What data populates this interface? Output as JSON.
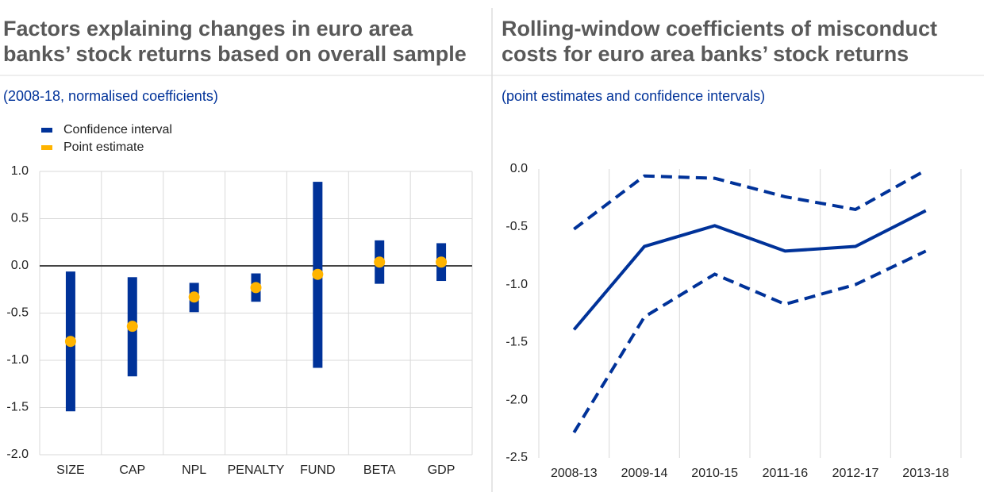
{
  "chart_data": [
    {
      "type": "interval",
      "title": "Factors explaining changes in euro area banks’ stock returns based on overall sample",
      "subtitle": "(2008-18, normalised coefficients)",
      "categories": [
        "SIZE",
        "CAP",
        "NPL",
        "PENALTY",
        "FUND",
        "BETA",
        "GDP"
      ],
      "series": [
        {
          "name": "Confidence interval",
          "color": "#003299",
          "low": [
            -1.54,
            -1.17,
            -0.49,
            -0.38,
            -1.08,
            -0.19,
            -0.16
          ],
          "high": [
            -0.06,
            -0.12,
            -0.18,
            -0.08,
            0.89,
            0.27,
            0.24
          ]
        },
        {
          "name": "Point estimate",
          "color": "#ffb400",
          "values": [
            -0.8,
            -0.64,
            -0.33,
            -0.23,
            -0.09,
            0.04,
            0.04
          ]
        }
      ],
      "ylim": [
        -2.0,
        1.0
      ],
      "yticks": [
        {
          "value": -2,
          "label": "-2.0"
        },
        {
          "value": -1.5,
          "label": "-1.5"
        },
        {
          "value": -1,
          "label": "-1.0"
        },
        {
          "value": -0.5,
          "label": "-0.5"
        },
        {
          "value": 0,
          "label": "0.0"
        },
        {
          "value": 0.5,
          "label": "0.5"
        },
        {
          "value": 1,
          "label": "1.0"
        }
      ],
      "grid": "both",
      "legend": "top-left"
    },
    {
      "type": "line",
      "title": "Rolling-window coefficients of misconduct costs for euro area banks’ stock returns",
      "subtitle": "(point estimates and confidence intervals)",
      "categories": [
        "2008-13",
        "2009-14",
        "2010-15",
        "2011-16",
        "2012-17",
        "2013-18"
      ],
      "series": [
        {
          "color": "#003299",
          "dashed": true,
          "values": [
            -0.52,
            -0.06,
            -0.08,
            -0.24,
            -0.35,
            -0.01
          ]
        },
        {
          "color": "#003299",
          "dashed": false,
          "values": [
            -1.39,
            -0.67,
            -0.49,
            -0.71,
            -0.67,
            -0.36
          ]
        },
        {
          "color": "#003299",
          "dashed": true,
          "values": [
            -2.28,
            -1.28,
            -0.91,
            -1.17,
            -1.0,
            -0.71
          ]
        }
      ],
      "ylim": [
        -2.5,
        0.0
      ],
      "yticks": [
        {
          "value": -2.5,
          "label": "-2.5"
        },
        {
          "value": -2,
          "label": "-2.0"
        },
        {
          "value": -1.5,
          "label": "-1.5"
        },
        {
          "value": -1,
          "label": "-1.0"
        },
        {
          "value": -0.5,
          "label": "-0.5"
        },
        {
          "value": 0,
          "label": "0.0"
        }
      ],
      "grid": "x"
    }
  ]
}
